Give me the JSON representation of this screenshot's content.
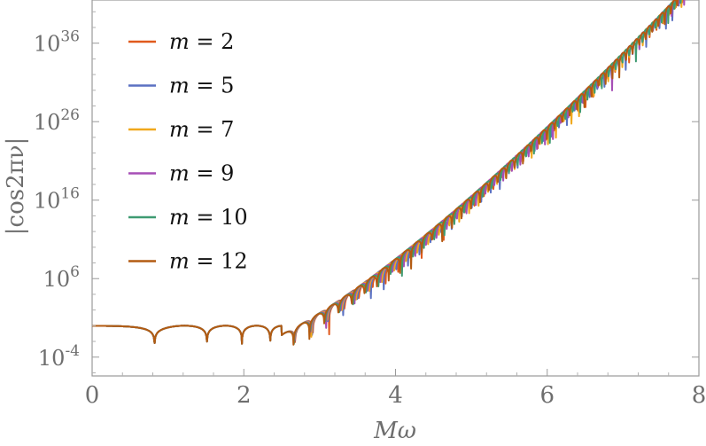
{
  "chart_data": {
    "type": "line",
    "title": "",
    "xlabel": "Mω",
    "ylabel": "|cos2πν|",
    "xlim": [
      0,
      8
    ],
    "ylim_log10": [
      -6.4,
      41.5
    ],
    "y_scale": "log",
    "x_ticks": [
      "0",
      "2",
      "4",
      "6",
      "8"
    ],
    "y_ticks": [
      {
        "base": "10",
        "exp": "-4",
        "log10": -4
      },
      {
        "base": "10",
        "exp": "6",
        "log10": 6
      },
      {
        "base": "10",
        "exp": "16",
        "log10": 16
      },
      {
        "base": "10",
        "exp": "26",
        "log10": 26
      },
      {
        "base": "10",
        "exp": "36",
        "log10": 36
      }
    ],
    "legend_position": "top-left",
    "grid": false,
    "series": [
      {
        "name": "m = 2",
        "m": "2",
        "color": "#e05a1d"
      },
      {
        "name": "m = 5",
        "m": "5",
        "color": "#5b71c2"
      },
      {
        "name": "m = 7",
        "m": "7",
        "color": "#f0a81c"
      },
      {
        "name": "m = 9",
        "m": "9",
        "color": "#a64fb6"
      },
      {
        "name": "m = 10",
        "m": "10",
        "color": "#3f9b72"
      },
      {
        "name": "m = 12",
        "m": "12",
        "color": "#b35b12"
      }
    ],
    "common_curve": {
      "description_points": [
        [
          0.0,
          0.0
        ],
        [
          0.5,
          0.0
        ],
        [
          0.9,
          -4.0
        ],
        [
          1.2,
          0.0
        ],
        [
          1.5,
          -4.0
        ],
        [
          1.7,
          0.0
        ],
        [
          1.9,
          -3.5
        ],
        [
          2.05,
          0.0
        ],
        [
          2.2,
          -3.2
        ],
        [
          2.35,
          0.0
        ],
        [
          2.45,
          -2.5
        ],
        [
          2.55,
          0.5
        ]
      ]
    },
    "envelope": [
      [
        2.5,
        0.5
      ],
      [
        3.0,
        3.5
      ],
      [
        3.5,
        6.5
      ],
      [
        4.0,
        11.0
      ],
      [
        4.5,
        15.0
      ],
      [
        5.0,
        18.5
      ],
      [
        5.5,
        21.5
      ],
      [
        6.0,
        24.0
      ],
      [
        6.5,
        27.0
      ],
      [
        7.0,
        30.0
      ],
      [
        7.5,
        33.5
      ],
      [
        8.0,
        37.0
      ]
    ],
    "dips": [
      {
        "x": 2.65,
        "depth": 2.5
      },
      {
        "x": 2.95,
        "depth": 2.8
      },
      {
        "x": 3.3,
        "depth": 3.0
      },
      {
        "x": 3.75,
        "depth": 4.0
      },
      {
        "x": 4.45,
        "depth": 3.2
      },
      {
        "x": 5.1,
        "depth": 3.0
      },
      {
        "x": 5.85,
        "depth": 2.8
      },
      {
        "x": 6.5,
        "depth": 2.5
      },
      {
        "x": 7.35,
        "depth": 3.0
      }
    ]
  }
}
